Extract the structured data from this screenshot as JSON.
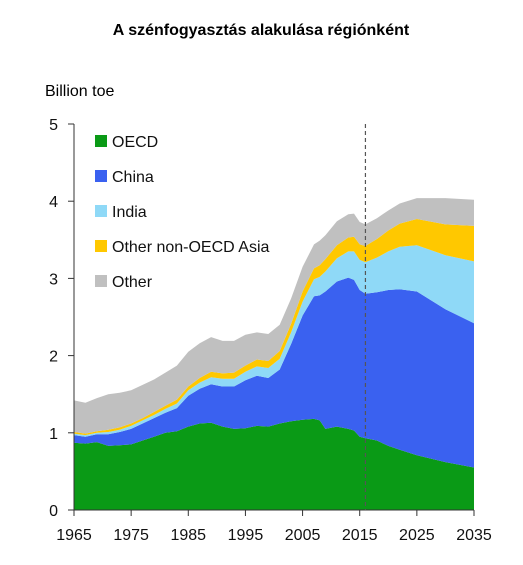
{
  "chart_data": {
    "type": "area",
    "stacked": true,
    "title": "A szénfogyasztás alakulása régiónként",
    "ylabel": "Billion toe",
    "xlabel": "",
    "xlim": [
      1965,
      2035
    ],
    "ylim": [
      0,
      5
    ],
    "x_ticks": [
      "1965",
      "1975",
      "1985",
      "1995",
      "2005",
      "2015",
      "2025",
      "2035"
    ],
    "y_ticks": [
      "0",
      "1",
      "2",
      "3",
      "4",
      "5"
    ],
    "projection_start": 2016,
    "legend_position": "top-left",
    "x": [
      1965,
      1967,
      1969,
      1971,
      1973,
      1975,
      1977,
      1979,
      1981,
      1983,
      1985,
      1987,
      1989,
      1991,
      1993,
      1995,
      1997,
      1999,
      2001,
      2003,
      2005,
      2007,
      2008,
      2009,
      2011,
      2013,
      2014,
      2015,
      2016,
      2018,
      2020,
      2022,
      2025,
      2030,
      2035
    ],
    "series": [
      {
        "name": "OECD",
        "color": "#0a9a16",
        "values": [
          0.87,
          0.86,
          0.88,
          0.83,
          0.84,
          0.85,
          0.9,
          0.95,
          1.0,
          1.02,
          1.08,
          1.12,
          1.13,
          1.08,
          1.05,
          1.06,
          1.09,
          1.08,
          1.12,
          1.15,
          1.17,
          1.18,
          1.16,
          1.05,
          1.08,
          1.05,
          1.03,
          0.95,
          0.93,
          0.9,
          0.83,
          0.78,
          0.71,
          0.62,
          0.55
        ]
      },
      {
        "name": "China",
        "color": "#3a61f0",
        "values": [
          0.1,
          0.09,
          0.1,
          0.15,
          0.17,
          0.2,
          0.22,
          0.24,
          0.26,
          0.3,
          0.4,
          0.45,
          0.5,
          0.52,
          0.55,
          0.62,
          0.65,
          0.63,
          0.7,
          1.0,
          1.35,
          1.59,
          1.62,
          1.78,
          1.88,
          1.96,
          1.95,
          1.9,
          1.87,
          1.92,
          2.02,
          2.08,
          2.12,
          1.98,
          1.87
        ]
      },
      {
        "name": "India",
        "color": "#8fd9f7",
        "values": [
          0.02,
          0.02,
          0.02,
          0.03,
          0.03,
          0.04,
          0.04,
          0.04,
          0.05,
          0.06,
          0.07,
          0.08,
          0.09,
          0.1,
          0.1,
          0.11,
          0.12,
          0.13,
          0.14,
          0.15,
          0.18,
          0.22,
          0.24,
          0.26,
          0.3,
          0.34,
          0.37,
          0.39,
          0.41,
          0.45,
          0.5,
          0.55,
          0.6,
          0.7,
          0.8
        ]
      },
      {
        "name": "Other non-OECD Asia",
        "color": "#ffc800",
        "values": [
          0.02,
          0.02,
          0.02,
          0.03,
          0.03,
          0.03,
          0.03,
          0.04,
          0.04,
          0.05,
          0.05,
          0.06,
          0.07,
          0.07,
          0.08,
          0.08,
          0.09,
          0.09,
          0.1,
          0.11,
          0.13,
          0.14,
          0.15,
          0.16,
          0.17,
          0.18,
          0.19,
          0.2,
          0.21,
          0.24,
          0.27,
          0.3,
          0.34,
          0.4,
          0.46
        ]
      },
      {
        "name": "Other",
        "color": "#c0c0c0",
        "values": [
          0.41,
          0.4,
          0.43,
          0.46,
          0.45,
          0.43,
          0.43,
          0.42,
          0.43,
          0.44,
          0.45,
          0.45,
          0.45,
          0.42,
          0.41,
          0.4,
          0.35,
          0.35,
          0.34,
          0.33,
          0.32,
          0.31,
          0.32,
          0.31,
          0.31,
          0.3,
          0.3,
          0.29,
          0.28,
          0.27,
          0.26,
          0.26,
          0.27,
          0.34,
          0.34
        ]
      }
    ]
  }
}
